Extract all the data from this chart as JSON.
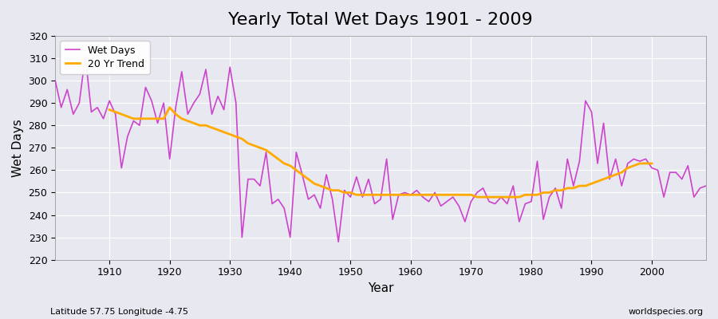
{
  "title": "Yearly Total Wet Days 1901 - 2009",
  "xlabel": "Year",
  "ylabel": "Wet Days",
  "subtitle": "Latitude 57.75 Longitude -4.75",
  "watermark": "worldspecies.org",
  "background_color": "#e8e8f0",
  "grid_color": "#ffffff",
  "wet_days_color": "#cc44cc",
  "trend_color": "#ffaa00",
  "ylim": [
    220,
    320
  ],
  "xlim": [
    1901,
    2009
  ],
  "yticks": [
    220,
    230,
    240,
    250,
    260,
    270,
    280,
    290,
    300,
    310,
    320
  ],
  "xticks": [
    1910,
    1920,
    1930,
    1940,
    1950,
    1960,
    1970,
    1980,
    1990,
    2000
  ],
  "years": [
    1901,
    1902,
    1903,
    1904,
    1905,
    1906,
    1907,
    1908,
    1909,
    1910,
    1911,
    1912,
    1913,
    1914,
    1915,
    1916,
    1917,
    1918,
    1919,
    1920,
    1921,
    1922,
    1923,
    1924,
    1925,
    1926,
    1927,
    1928,
    1929,
    1930,
    1931,
    1932,
    1933,
    1934,
    1935,
    1936,
    1937,
    1938,
    1939,
    1940,
    1941,
    1942,
    1943,
    1944,
    1945,
    1946,
    1947,
    1948,
    1949,
    1950,
    1951,
    1952,
    1953,
    1954,
    1955,
    1956,
    1957,
    1958,
    1959,
    1960,
    1961,
    1962,
    1963,
    1964,
    1965,
    1966,
    1967,
    1968,
    1969,
    1970,
    1971,
    1972,
    1973,
    1974,
    1975,
    1976,
    1977,
    1978,
    1979,
    1980,
    1981,
    1982,
    1983,
    1984,
    1985,
    1986,
    1987,
    1988,
    1989,
    1990,
    1991,
    1992,
    1993,
    1994,
    1995,
    1996,
    1997,
    1998,
    1999,
    2000,
    2001,
    2002,
    2003,
    2004,
    2005,
    2006,
    2007,
    2008,
    2009
  ],
  "wet_days": [
    300,
    288,
    296,
    285,
    290,
    311,
    286,
    288,
    283,
    291,
    285,
    261,
    275,
    282,
    280,
    297,
    291,
    281,
    290,
    265,
    288,
    304,
    285,
    290,
    294,
    305,
    285,
    293,
    287,
    306,
    290,
    230,
    256,
    256,
    253,
    268,
    245,
    247,
    243,
    230,
    268,
    258,
    247,
    249,
    243,
    258,
    247,
    228,
    251,
    248,
    257,
    248,
    256,
    245,
    247,
    265,
    238,
    249,
    250,
    249,
    251,
    248,
    246,
    250,
    244,
    246,
    248,
    244,
    237,
    246,
    250,
    252,
    246,
    245,
    248,
    245,
    253,
    237,
    245,
    246,
    264,
    238,
    248,
    252,
    243,
    265,
    253,
    264,
    291,
    286,
    263,
    281,
    256,
    265,
    253,
    263,
    265,
    264,
    265,
    261,
    260,
    248,
    259,
    259,
    256,
    262,
    248,
    252,
    253
  ],
  "trend_years": [
    1910,
    1911,
    1912,
    1913,
    1914,
    1915,
    1916,
    1917,
    1918,
    1919,
    1920,
    1921,
    1922,
    1923,
    1924,
    1925,
    1926,
    1927,
    1928,
    1929,
    1930,
    1931,
    1932,
    1933,
    1934,
    1935,
    1936,
    1937,
    1938,
    1939,
    1940,
    1941,
    1942,
    1943,
    1944,
    1945,
    1946,
    1947,
    1948,
    1949,
    1950,
    1951,
    1952,
    1953,
    1954,
    1955,
    1956,
    1957,
    1958,
    1959,
    1960,
    1961,
    1962,
    1963,
    1964,
    1965,
    1966,
    1967,
    1968,
    1969,
    1970,
    1971,
    1972,
    1973,
    1974,
    1975,
    1976,
    1977,
    1978,
    1979,
    1980,
    1981,
    1982,
    1983,
    1984,
    1985,
    1986,
    1987,
    1988,
    1989,
    1990,
    1991,
    1992,
    1993,
    1994,
    1995,
    1996,
    1997,
    1998,
    1999,
    2000
  ],
  "trend_values": [
    287,
    286,
    285,
    284,
    283,
    283,
    283,
    283,
    283,
    283,
    288,
    285,
    283,
    282,
    281,
    280,
    280,
    279,
    278,
    277,
    276,
    275,
    274,
    272,
    271,
    270,
    269,
    267,
    265,
    263,
    262,
    260,
    258,
    256,
    254,
    253,
    252,
    251,
    251,
    250,
    250,
    249,
    249,
    249,
    249,
    249,
    249,
    249,
    249,
    249,
    249,
    249,
    249,
    249,
    249,
    249,
    249,
    249,
    249,
    249,
    249,
    248,
    248,
    248,
    248,
    248,
    248,
    248,
    248,
    249,
    249,
    249,
    250,
    250,
    251,
    251,
    252,
    252,
    253,
    253,
    254,
    255,
    256,
    257,
    258,
    259,
    261,
    262,
    263,
    263,
    263
  ]
}
